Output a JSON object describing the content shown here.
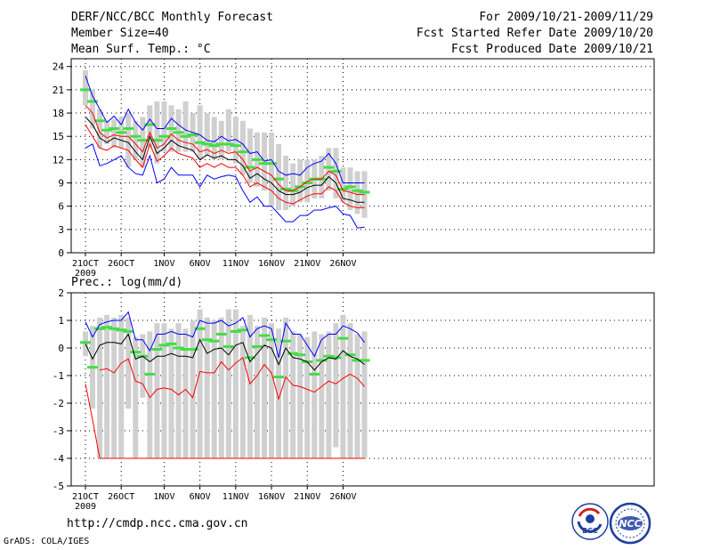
{
  "header": {
    "title": "DERF/NCC/BCC Monthly Forecast",
    "member_size": "Member Size=40",
    "variable": "Mean Surf. Temp.: °C",
    "period": "For 2009/10/21-2009/11/29",
    "started": "Fcst Started Refer Date 2009/10/20",
    "produced": "Fcst Produced Date 2009/10/21"
  },
  "precip_label": "Prec.: log(mm/d)",
  "footer": {
    "url": "http://cmdp.ncc.cma.gov.cn",
    "grads": "GrADS: COLA/IGES"
  },
  "logos": {
    "bcc": "BCC",
    "ncc": "NCC"
  },
  "colors": {
    "box": "#d0d0d0",
    "median": "#44dd44",
    "mean": "#000000",
    "spread": "#ff0000",
    "minmax": "#0000ff"
  },
  "chart_data": [
    {
      "type": "line",
      "title": "Mean Surf. Temp.: °C",
      "x_tick_labels": [
        "21OCT",
        "26OCT",
        "1NOV",
        "6NOV",
        "11NOV",
        "16NOV",
        "21NOV",
        "26NOV"
      ],
      "x_year_label": "2009",
      "x_tick_days": [
        0,
        5,
        11,
        16,
        21,
        26,
        31,
        36
      ],
      "ylim": [
        0,
        25
      ],
      "yticks": [
        0,
        3,
        6,
        9,
        12,
        15,
        18,
        21,
        24
      ],
      "days": [
        0,
        1,
        2,
        3,
        4,
        5,
        6,
        7,
        8,
        9,
        10,
        11,
        12,
        13,
        14,
        15,
        16,
        17,
        18,
        19,
        20,
        21,
        22,
        23,
        24,
        25,
        26,
        27,
        28,
        29,
        30,
        31,
        32,
        33,
        34,
        35,
        36,
        37,
        38,
        39
      ],
      "box_top": [
        23.5,
        21.0,
        18.5,
        17.0,
        17.2,
        17.5,
        18.0,
        17.0,
        17.5,
        19.0,
        19.5,
        19.5,
        19.0,
        18.5,
        19.5,
        18.0,
        19.0,
        18.0,
        17.5,
        17.0,
        18.5,
        17.5,
        17.0,
        16.0,
        15.5,
        15.5,
        15.5,
        14.0,
        12.5,
        11.5,
        12.0,
        12.0,
        12.0,
        12.5,
        13.5,
        13.5,
        11.0,
        11.0,
        10.5,
        10.5
      ],
      "box_bottom": [
        19.0,
        16.0,
        13.5,
        14.0,
        13.5,
        13.5,
        11.0,
        12.0,
        11.0,
        13.5,
        11.5,
        13.0,
        13.0,
        13.0,
        13.0,
        13.0,
        12.0,
        12.5,
        12.0,
        12.0,
        13.0,
        11.5,
        10.0,
        9.0,
        8.5,
        8.0,
        6.0,
        5.5,
        5.5,
        6.0,
        6.5,
        6.5,
        7.0,
        7.0,
        8.0,
        7.0,
        6.5,
        5.5,
        5.0,
        4.5
      ],
      "series": [
        {
          "name": "median",
          "style": "green-dash",
          "values": [
            21.0,
            19.5,
            17.0,
            15.8,
            16.0,
            15.5,
            16.0,
            15.0,
            14.5,
            16.5,
            14.5,
            15.0,
            16.0,
            15.5,
            15.0,
            15.2,
            14.2,
            14.0,
            13.8,
            14.0,
            14.0,
            13.8,
            13.0,
            11.0,
            12.0,
            11.5,
            11.5,
            9.5,
            8.2,
            8.0,
            8.5,
            9.0,
            9.5,
            9.5,
            11.0,
            10.5,
            8.2,
            8.5,
            8.0,
            7.8
          ]
        },
        {
          "name": "ensemble max",
          "color": "#0000ff",
          "values": [
            22.8,
            20.2,
            18.5,
            16.8,
            17.6,
            16.5,
            18.5,
            16.8,
            15.8,
            17.2,
            16.0,
            16.0,
            17.3,
            16.5,
            15.8,
            15.5,
            15.2,
            14.5,
            14.3,
            15.0,
            14.4,
            14.6,
            14.0,
            12.8,
            13.0,
            11.8,
            12.0,
            10.5,
            10.0,
            10.2,
            10.0,
            11.0,
            11.5,
            11.8,
            12.8,
            11.5,
            9.0,
            9.0,
            9.0,
            9.0
          ]
        },
        {
          "name": "mean + spread",
          "color": "#ff0000",
          "values": [
            19.0,
            18.0,
            15.5,
            14.8,
            15.2,
            15.0,
            15.0,
            14.0,
            13.0,
            15.5,
            13.5,
            14.0,
            15.3,
            14.5,
            14.2,
            14.0,
            13.0,
            13.3,
            12.8,
            13.2,
            12.8,
            13.0,
            12.0,
            10.5,
            11.0,
            10.5,
            10.0,
            8.8,
            8.0,
            8.0,
            8.5,
            9.2,
            9.5,
            9.5,
            10.5,
            10.0,
            8.0,
            7.8,
            7.5,
            7.5
          ]
        },
        {
          "name": "ensemble mean",
          "color": "#000000",
          "values": [
            17.5,
            16.5,
            14.8,
            14.2,
            14.8,
            14.5,
            14.2,
            13.0,
            12.0,
            15.0,
            12.8,
            13.5,
            14.5,
            13.8,
            13.5,
            13.2,
            12.0,
            12.6,
            12.2,
            12.5,
            12.0,
            12.0,
            11.2,
            9.6,
            10.2,
            9.5,
            9.0,
            8.0,
            7.5,
            7.5,
            7.8,
            8.4,
            8.7,
            8.7,
            9.8,
            9.0,
            7.0,
            6.8,
            6.5,
            6.5
          ]
        },
        {
          "name": "mean - spread",
          "color": "#ff0000",
          "values": [
            16.5,
            15.0,
            13.5,
            13.2,
            13.8,
            13.5,
            13.2,
            12.0,
            11.0,
            14.0,
            11.8,
            12.5,
            13.5,
            12.8,
            12.5,
            12.2,
            11.0,
            11.5,
            11.0,
            11.5,
            11.0,
            11.0,
            10.0,
            8.5,
            9.0,
            8.5,
            8.0,
            7.0,
            6.5,
            6.3,
            6.8,
            7.3,
            7.6,
            7.6,
            8.5,
            8.0,
            6.5,
            6.0,
            5.8,
            5.8
          ]
        },
        {
          "name": "ensemble min",
          "color": "#0000ff",
          "values": [
            13.5,
            14.0,
            11.2,
            11.5,
            12.0,
            12.5,
            11.0,
            10.2,
            10.0,
            12.5,
            9.0,
            9.5,
            11.0,
            10.0,
            10.0,
            10.0,
            8.5,
            10.0,
            9.5,
            9.8,
            10.0,
            9.8,
            8.0,
            6.5,
            7.2,
            6.0,
            6.0,
            5.0,
            4.0,
            4.0,
            4.8,
            4.8,
            5.5,
            5.5,
            5.8,
            6.0,
            5.0,
            4.8,
            3.2,
            3.3
          ]
        }
      ]
    },
    {
      "type": "line",
      "title": "Prec.: log(mm/d)",
      "x_tick_labels": [
        "21OCT",
        "26OCT",
        "1NOV",
        "6NOV",
        "11NOV",
        "16NOV",
        "21NOV",
        "26NOV"
      ],
      "x_year_label": "2009",
      "x_tick_days": [
        0,
        5,
        11,
        16,
        21,
        26,
        31,
        36
      ],
      "ylim": [
        -5,
        2
      ],
      "yticks": [
        -5,
        -4,
        -3,
        -2,
        -1,
        0,
        1,
        2
      ],
      "days": [
        0,
        1,
        2,
        3,
        4,
        5,
        6,
        7,
        8,
        9,
        10,
        11,
        12,
        13,
        14,
        15,
        16,
        17,
        18,
        19,
        20,
        21,
        22,
        23,
        24,
        25,
        26,
        27,
        28,
        29,
        30,
        31,
        32,
        33,
        34,
        35,
        36,
        37,
        38,
        39
      ],
      "box_top": [
        0.6,
        0.8,
        1.1,
        1.2,
        1.1,
        1.2,
        1.1,
        0.4,
        0.5,
        0.6,
        0.9,
        0.9,
        0.7,
        0.9,
        0.7,
        1.0,
        1.4,
        1.1,
        1.0,
        1.1,
        1.4,
        1.4,
        0.8,
        1.2,
        0.8,
        1.1,
        0.9,
        0.7,
        1.1,
        0.6,
        0.5,
        0.4,
        0.6,
        0.5,
        0.6,
        0.9,
        1.2,
        0.9,
        0.5,
        0.6
      ],
      "box_bottom": [
        -0.3,
        -2.2,
        -4.0,
        -4.0,
        -4.0,
        -4.0,
        -2.2,
        -4.0,
        -1.8,
        -4.0,
        -4.0,
        -4.0,
        -4.0,
        -4.0,
        -4.0,
        -4.0,
        -4.0,
        -4.0,
        -4.0,
        -4.0,
        -4.0,
        -4.0,
        -4.0,
        -4.0,
        -4.0,
        -4.0,
        -4.0,
        -4.0,
        -4.0,
        -4.0,
        -4.0,
        -4.0,
        -4.0,
        -4.0,
        -4.0,
        -3.6,
        -4.0,
        -4.0,
        -4.0,
        -4.0
      ],
      "series": [
        {
          "name": "median",
          "style": "green-dash",
          "values": [
            0.2,
            -0.7,
            0.7,
            0.75,
            0.7,
            0.65,
            0.6,
            -0.15,
            -0.3,
            -0.95,
            -0.05,
            0.1,
            0.15,
            0.0,
            -0.05,
            -0.05,
            0.7,
            0.3,
            0.25,
            0.5,
            0.05,
            0.6,
            0.65,
            -0.35,
            0.05,
            0.45,
            0.3,
            -1.05,
            0.25,
            -0.2,
            -0.25,
            -0.5,
            -0.95,
            -0.45,
            -0.3,
            -0.35,
            0.35,
            -0.25,
            -0.45,
            -0.45
          ]
        },
        {
          "name": "ensemble max",
          "color": "#0000ff",
          "values": [
            0.95,
            0.4,
            0.85,
            0.95,
            1.0,
            1.0,
            1.3,
            0.3,
            0.3,
            -0.1,
            0.5,
            0.5,
            0.6,
            0.5,
            0.5,
            0.4,
            1.0,
            0.9,
            0.9,
            1.0,
            0.8,
            0.9,
            1.1,
            0.4,
            0.7,
            0.8,
            0.7,
            -0.35,
            0.9,
            0.5,
            0.5,
            0.1,
            -0.3,
            0.3,
            0.5,
            0.5,
            0.8,
            0.7,
            0.55,
            0.2
          ]
        },
        {
          "name": "ensemble mean",
          "color": "#000000",
          "values": [
            0.15,
            -0.4,
            0.1,
            0.2,
            0.2,
            0.15,
            0.5,
            -0.4,
            -0.3,
            -0.5,
            -0.3,
            -0.3,
            -0.2,
            -0.3,
            -0.3,
            -0.35,
            0.3,
            -0.2,
            -0.05,
            0.0,
            -0.25,
            0.1,
            0.2,
            -0.5,
            -0.2,
            0.1,
            0.0,
            -0.6,
            0.0,
            -0.35,
            -0.4,
            -0.5,
            -0.8,
            -0.5,
            -0.35,
            -0.4,
            -0.1,
            -0.3,
            -0.4,
            -0.6
          ]
        },
        {
          "name": "mean - spread",
          "color": "#ff0000",
          "values": [
            -1.3,
            -2.6,
            -4.0,
            -4.0,
            -4.0,
            -4.0,
            -4.0,
            -4.0,
            -4.0,
            -4.0,
            -4.0,
            -4.0,
            -4.0,
            -4.0,
            -4.0,
            -4.0,
            -4.0,
            -4.0,
            -4.0,
            -4.0,
            -4.0,
            -4.0,
            -4.0,
            -4.0,
            -4.0,
            -4.0,
            -4.0,
            -4.0,
            -4.0,
            -4.0,
            -4.0,
            -4.0,
            -4.0,
            -4.0,
            -4.0,
            -4.0,
            -4.0,
            -4.0,
            -4.0,
            -4.0
          ]
        },
        {
          "name": "mean - spread (upper)",
          "color": "#ff0000",
          "values": [
            null,
            null,
            -0.8,
            -0.75,
            -0.9,
            -0.55,
            -0.4,
            -1.2,
            -1.3,
            -1.8,
            -1.5,
            -1.45,
            -1.5,
            -1.7,
            -1.5,
            -1.8,
            -0.85,
            -0.9,
            -0.9,
            -0.5,
            -0.8,
            -0.55,
            -0.35,
            -1.3,
            -1.0,
            -0.6,
            -0.9,
            -1.85,
            -1.05,
            -1.35,
            -1.4,
            -1.5,
            -1.6,
            -1.4,
            -1.2,
            -1.3,
            -1.1,
            -0.95,
            -1.1,
            -1.4
          ]
        }
      ]
    }
  ]
}
